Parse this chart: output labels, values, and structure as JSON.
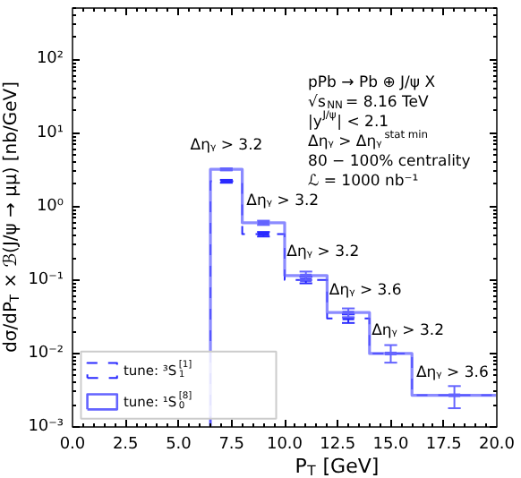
{
  "chart_data": {
    "type": "histogram",
    "xlabel": "P$_{T}$ [GeV]",
    "ylabel": "dσ/dP$_{T}$ × ℬ(J/ψ → μμ) [nb/GeV]",
    "bins": [
      6.5,
      8,
      10,
      12,
      14,
      16,
      20
    ],
    "series": [
      {
        "name": "tune: ³S$_{1}$$^{[1]}$",
        "color": "#2a2aff",
        "line_style": "dashed",
        "values": [
          2.2,
          0.42,
          0.1,
          0.03,
          0.01,
          0.0027
        ]
      },
      {
        "name": "tune: ¹S$_{0}$$^{[8]}$",
        "color": "#6464ff",
        "line_style": "solid",
        "values": [
          3.2,
          0.6,
          0.115,
          0.036,
          0.01,
          0.0027
        ]
      },
      {
        "type": "scatter",
        "color": "#2a2aff",
        "x": [
          7.25,
          9,
          11,
          13
        ],
        "values": [
          2.2,
          0.42,
          0.1,
          0.03
        ],
        "errors": [
          [
            2.1,
            2.3
          ],
          [
            0.39,
            0.45
          ],
          [
            0.09,
            0.11
          ],
          [
            0.026,
            0.034
          ]
        ]
      },
      {
        "type": "scatter",
        "color": "#6464ff",
        "x": [
          7.25,
          9,
          11,
          13,
          15,
          18
        ],
        "values": [
          3.2,
          0.6,
          0.115,
          0.036,
          0.01,
          0.0027
        ],
        "errors": [
          [
            3.1,
            3.3
          ],
          [
            0.56,
            0.64
          ],
          [
            0.1,
            0.13
          ],
          [
            0.031,
            0.041
          ],
          [
            0.0075,
            0.013
          ],
          [
            0.0018,
            0.0036
          ]
        ]
      }
    ],
    "log": true,
    "xlim": [
      0,
      20
    ],
    "xticks": [
      {
        "value": 0,
        "label": "0.0"
      },
      {
        "value": 2.5,
        "label": "2.5"
      },
      {
        "value": 5,
        "label": "5.0"
      },
      {
        "value": 7.5,
        "label": "7.5"
      },
      {
        "value": 10,
        "label": "10.0"
      },
      {
        "value": 12.5,
        "label": "12.5"
      },
      {
        "value": 15,
        "label": "15.0"
      },
      {
        "value": 17.5,
        "label": "17.5"
      },
      {
        "value": 20,
        "label": "20.0"
      }
    ],
    "ylim": [
      0.001,
      500
    ],
    "yticks": [
      {
        "value": 0.001,
        "label": "10⁻³"
      },
      {
        "value": 0.01,
        "label": "10⁻²"
      },
      {
        "value": 0.1,
        "label": "10⁻¹"
      },
      {
        "value": 1,
        "label": "10⁰"
      },
      {
        "value": 10,
        "label": "10¹"
      },
      {
        "value": 100,
        "label": "10²"
      }
    ],
    "legend": "bottom left",
    "grid": false,
    "annotations": [
      "pPb → Pb ⊕ J/ψ X",
      "√s$_{NN}$ = 8.16 TeV",
      "|y$^{J/ψ}$| < 2.1",
      "Δηᵧ > Δηᵧ$^{stat min}$",
      "80 − 100% centrality",
      "ℒ = 1000 nb⁻¹",
      {
        "text": "Δηᵧ > 3.2",
        "x": 7.25,
        "y": 4.2
      },
      {
        "text": "Δηᵧ > 3.2",
        "x": 9.9,
        "y": 0.75
      },
      {
        "text": "Δηᵧ > 3.2",
        "x": 11.8,
        "y": 0.15
      },
      {
        "text": "Δηᵧ > 3.6",
        "x": 13.8,
        "y": 0.045
      },
      {
        "text": "Δηᵧ > 3.2",
        "x": 15.8,
        "y": 0.013
      },
      {
        "text": "Δηᵧ > 3.6",
        "x": 17.9,
        "y": 0.0034
      }
    ]
  }
}
